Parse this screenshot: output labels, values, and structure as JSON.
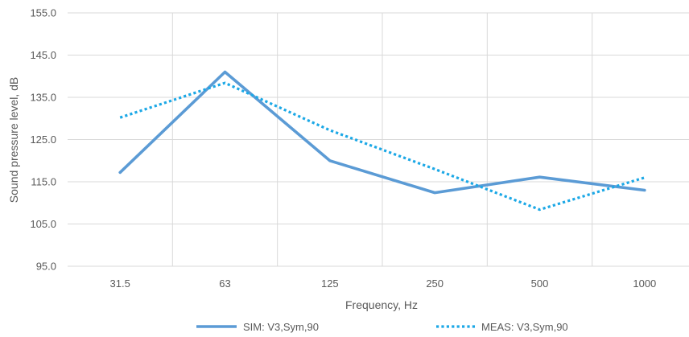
{
  "chart_data": {
    "type": "line",
    "title": "",
    "xlabel": "Frequency, Hz",
    "ylabel": "Sound pressure level, dB",
    "categories": [
      "31.5",
      "63",
      "125",
      "250",
      "500",
      "1000"
    ],
    "y_ticks": [
      "95.0",
      "105.0",
      "115.0",
      "125.0",
      "135.0",
      "145.0",
      "155.0"
    ],
    "ylim": [
      95,
      155
    ],
    "grid": true,
    "legend_position": "bottom",
    "series": [
      {
        "name": "SIM: V3,Sym,90",
        "style": "solid",
        "color": "#5B9BD5",
        "values": [
          117.2,
          141.0,
          120.0,
          112.4,
          116.1,
          113.0
        ]
      },
      {
        "name": "MEAS: V3,Sym,90",
        "style": "dotted",
        "color": "#1CA8E6",
        "values": [
          130.2,
          138.4,
          127.2,
          118.0,
          108.4,
          116.0
        ]
      }
    ]
  }
}
